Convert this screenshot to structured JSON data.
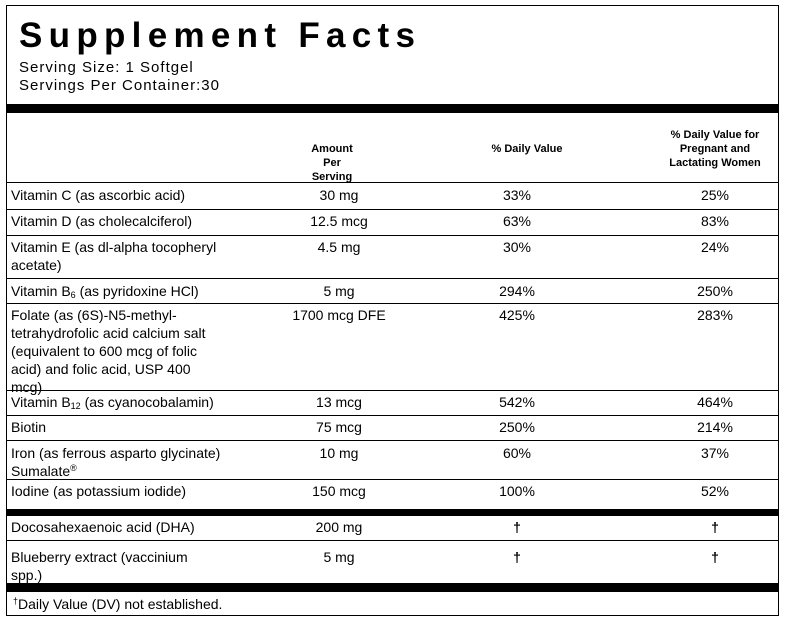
{
  "panel": {
    "title": "Supplement Facts",
    "serving_size": "Serving Size: 1 Softgel",
    "servings_per_container": "Servings Per Container:30"
  },
  "columns": {
    "amount_l1": "Amount",
    "amount_l2": "Per",
    "amount_l3": "Serving",
    "dv": "% Daily Value",
    "dvp_l1": "% Daily Value for",
    "dvp_l2": "Pregnant and",
    "dvp_l3": "Lactating Women"
  },
  "rows": [
    {
      "name": "Vitamin C (as ascorbic acid)",
      "amount": "30 mg",
      "dv": "33%",
      "dvp": "25%"
    },
    {
      "name": "Vitamin D (as cholecalciferol)",
      "amount": "12.5 mcg",
      "dv": "63%",
      "dvp": "83%"
    },
    {
      "name_l1": "Vitamin E (as dl-alpha tocopheryl",
      "name_l2": "acetate)",
      "amount": "4.5 mg",
      "dv": "30%",
      "dvp": "24%"
    },
    {
      "name_pre": "Vitamin B",
      "name_sub": "6",
      "name_post": " (as pyridoxine HCl)",
      "amount": "5 mg",
      "dv": "294%",
      "dvp": "250%"
    },
    {
      "name_l1": "Folate (as (6S)-N5-methyl-",
      "name_l2": "tetrahydrofolic acid calcium salt",
      "name_l3": "(equivalent to 600 mcg of folic",
      "name_l4": "acid) and folic acid, USP 400",
      "name_l5": "mcg)",
      "amount": "1700 mcg DFE",
      "dv": "425%",
      "dvp": "283%"
    },
    {
      "name_pre": "Vitamin B",
      "name_sub": "12",
      "name_post": " (as cyanocobalamin)",
      "amount": "13 mcg",
      "dv": "542%",
      "dvp": "464%"
    },
    {
      "name": "Biotin",
      "amount": "75 mcg",
      "dv": "250%",
      "dvp": "214%"
    },
    {
      "name_l1": "Iron (as ferrous asparto glycinate)",
      "name_l2": "Sumalate",
      "name_reg": "®",
      "amount": "10 mg",
      "dv": "60%",
      "dvp": "37%"
    },
    {
      "name": "Iodine (as potassium iodide)",
      "amount": "150 mcg",
      "dv": "100%",
      "dvp": "52%"
    },
    {
      "name": "Docosahexaenoic acid (DHA)",
      "amount": "200 mg",
      "dv": "†",
      "dvp": "†"
    },
    {
      "name_l1": "Blueberry extract (vaccinium",
      "name_l2": "spp.)",
      "amount": "5 mg",
      "dv": "†",
      "dvp": "†"
    }
  ],
  "footnote": {
    "mark": "†",
    "text": "Daily Value (DV) not established."
  }
}
